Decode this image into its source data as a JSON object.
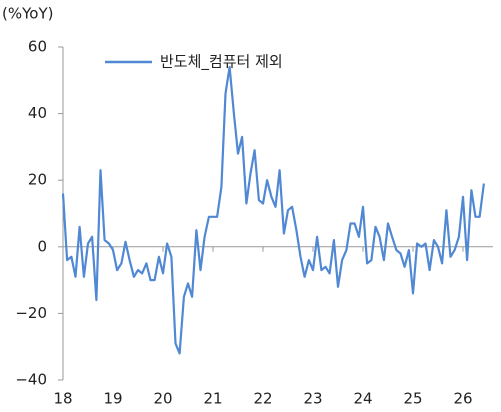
{
  "chart_data": {
    "type": "line",
    "y_label": "(%YoY)",
    "x": [
      18.0,
      18.083,
      18.167,
      18.25,
      18.333,
      18.417,
      18.5,
      18.583,
      18.667,
      18.75,
      18.833,
      18.917,
      19.0,
      19.083,
      19.167,
      19.25,
      19.333,
      19.417,
      19.5,
      19.583,
      19.667,
      19.75,
      19.833,
      19.917,
      20.0,
      20.083,
      20.167,
      20.25,
      20.333,
      20.417,
      20.5,
      20.583,
      20.667,
      20.75,
      20.833,
      20.917,
      21.0,
      21.083,
      21.167,
      21.25,
      21.333,
      21.417,
      21.5,
      21.583,
      21.667,
      21.75,
      21.833,
      21.917,
      22.0,
      22.083,
      22.167,
      22.25,
      22.333,
      22.417,
      22.5,
      22.583,
      22.667,
      22.75,
      22.833,
      22.917,
      23.0,
      23.083,
      23.167,
      23.25,
      23.333,
      23.417,
      23.5,
      23.583,
      23.667,
      23.75,
      23.833,
      23.917,
      24.0,
      24.083,
      24.167,
      24.25,
      24.333,
      24.417,
      24.5,
      24.583,
      24.667,
      24.75,
      24.833,
      24.917,
      25.0,
      25.083,
      25.167,
      25.25,
      25.333,
      25.417,
      25.5,
      25.583,
      25.667,
      25.75,
      25.833,
      25.917,
      26.0,
      26.083,
      26.167,
      26.25,
      26.333,
      26.417
    ],
    "series": [
      {
        "name": "반도체_컴퓨터 제외",
        "color": "#5088d4",
        "values": [
          16,
          -4,
          -3,
          -9,
          6,
          -9,
          1,
          3,
          -16,
          23,
          2,
          1,
          -1,
          -7,
          -5,
          1.5,
          -4,
          -9,
          -7,
          -8,
          -5,
          -10,
          -10,
          -3,
          -8,
          1,
          -3,
          -29,
          -32,
          -15,
          -11,
          -15,
          5,
          -7,
          3,
          9,
          9,
          9,
          18,
          46,
          54,
          40,
          28,
          33,
          13,
          22,
          29,
          14,
          13,
          20,
          15,
          12,
          23,
          4,
          11,
          12,
          5,
          -3,
          -9,
          -4,
          -7,
          3,
          -7,
          -6,
          -8,
          2,
          -12,
          -4,
          -1,
          7,
          7,
          3,
          12,
          -5,
          -4,
          6,
          3,
          -4,
          7,
          3,
          -1,
          -2,
          -6,
          -1,
          -14,
          1,
          0,
          1,
          -7,
          2,
          0,
          -5,
          11,
          -3,
          -1,
          3,
          15,
          -4,
          17,
          9,
          9,
          19
        ]
      }
    ],
    "xlim": [
      18,
      26.6
    ],
    "xticks": [
      {
        "value": 18,
        "label": "18"
      },
      {
        "value": 19,
        "label": "19"
      },
      {
        "value": 20,
        "label": "20"
      },
      {
        "value": 21,
        "label": "21"
      },
      {
        "value": 22,
        "label": "22"
      },
      {
        "value": 23,
        "label": "23"
      },
      {
        "value": 24,
        "label": "24"
      },
      {
        "value": 25,
        "label": "25"
      },
      {
        "value": 26,
        "label": "26"
      }
    ],
    "ylim": [
      -40,
      60
    ],
    "yticks": [
      {
        "value": -40,
        "label": "−40"
      },
      {
        "value": -20,
        "label": "−20"
      },
      0,
      20,
      40,
      60
    ],
    "legend": "top-left"
  }
}
